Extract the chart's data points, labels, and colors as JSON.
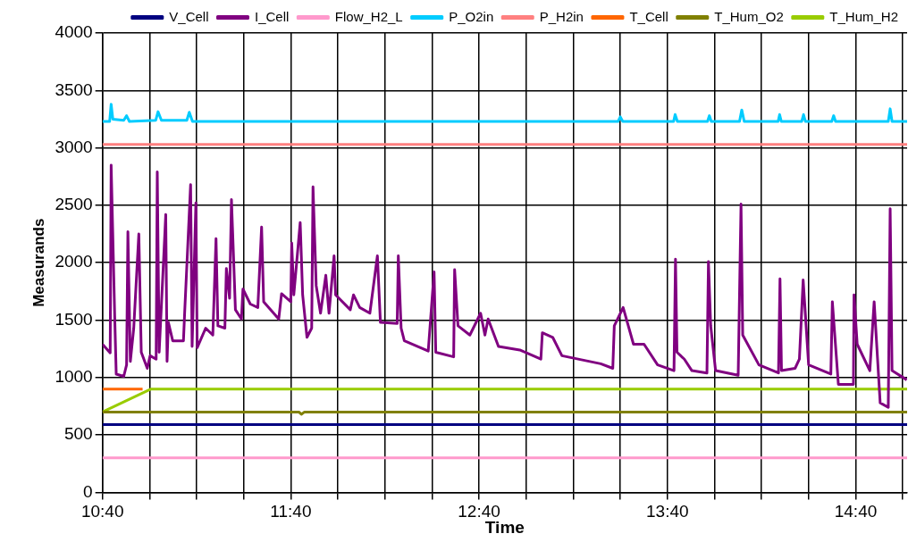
{
  "chart_data": {
    "type": "line",
    "xlabel": "Time",
    "ylabel": "Measurands",
    "legend": "top",
    "grid": true,
    "marker": "none",
    "line_style": "solid",
    "xlim": [
      10.667,
      14.94
    ],
    "xticks": [
      {
        "value": 10.667,
        "label": "10:40"
      },
      {
        "value": 10.917,
        "label": null
      },
      {
        "value": 11.167,
        "label": null
      },
      {
        "value": 11.417,
        "label": null
      },
      {
        "value": 11.667,
        "label": "11:40"
      },
      {
        "value": 11.917,
        "label": null
      },
      {
        "value": 12.167,
        "label": null
      },
      {
        "value": 12.417,
        "label": null
      },
      {
        "value": 12.667,
        "label": "12:40"
      },
      {
        "value": 12.917,
        "label": null
      },
      {
        "value": 13.167,
        "label": null
      },
      {
        "value": 13.417,
        "label": null
      },
      {
        "value": 13.667,
        "label": "13:40"
      },
      {
        "value": 13.917,
        "label": null
      },
      {
        "value": 14.167,
        "label": null
      },
      {
        "value": 14.417,
        "label": null
      },
      {
        "value": 14.667,
        "label": "14:40"
      },
      {
        "value": 14.917,
        "label": null
      }
    ],
    "ylim": [
      0,
      4000
    ],
    "yticks": [
      0,
      500,
      1000,
      1500,
      2000,
      2500,
      3000,
      3500,
      4000
    ],
    "series": [
      {
        "name": "V_Cell",
        "color": "#000080",
        "x": [
          10.667,
          14.94
        ],
        "values": [
          590,
          590
        ]
      },
      {
        "name": "I_Cell",
        "color": "#800080",
        "x": [
          10.667,
          10.708,
          10.713,
          10.732,
          10.74,
          10.78,
          10.795,
          10.802,
          10.815,
          10.833,
          10.86,
          10.873,
          10.905,
          10.92,
          10.952,
          10.958,
          10.968,
          11.003,
          11.01,
          11.017,
          11.04,
          11.097,
          11.103,
          11.135,
          11.143,
          11.163,
          11.17,
          11.215,
          11.253,
          11.27,
          11.28,
          11.317,
          11.325,
          11.342,
          11.352,
          11.373,
          11.405,
          11.413,
          11.452,
          11.492,
          11.512,
          11.523,
          11.603,
          11.618,
          11.667,
          11.672,
          11.683,
          11.717,
          11.73,
          11.753,
          11.778,
          11.785,
          11.802,
          11.825,
          11.853,
          11.87,
          11.897,
          11.905,
          11.983,
          12.0,
          12.033,
          12.087,
          12.127,
          12.143,
          12.232,
          12.238,
          12.253,
          12.27,
          12.397,
          12.428,
          12.437,
          12.532,
          12.537,
          12.555,
          12.618,
          12.675,
          12.698,
          12.715,
          12.77,
          12.883,
          12.995,
          13.003,
          13.058,
          13.107,
          13.313,
          13.377,
          13.385,
          13.432,
          13.487,
          13.543,
          13.615,
          13.702,
          13.71,
          13.718,
          13.757,
          13.797,
          13.877,
          13.885,
          13.897,
          13.923,
          14.043,
          14.058,
          14.067,
          14.153,
          14.257,
          14.265,
          14.273,
          14.345,
          14.368,
          14.388,
          14.417,
          14.535,
          14.543,
          14.575,
          14.655,
          14.658,
          14.675,
          14.742,
          14.765,
          14.797,
          14.84,
          14.85,
          14.86,
          14.938
        ],
        "values": [
          1290,
          1215,
          2850,
          1530,
          1030,
          1010,
          1110,
          2270,
          1140,
          1430,
          2250,
          1220,
          1080,
          1190,
          1160,
          2790,
          1220,
          2420,
          1140,
          1480,
          1320,
          1320,
          1550,
          2680,
          1270,
          2520,
          1260,
          1430,
          1370,
          2210,
          1450,
          1430,
          1950,
          1690,
          2550,
          1590,
          1510,
          1770,
          1640,
          1610,
          2310,
          1660,
          1510,
          1730,
          1660,
          2170,
          1720,
          2350,
          1720,
          1350,
          1430,
          2660,
          1800,
          1560,
          1890,
          1560,
          2060,
          1720,
          1590,
          1720,
          1610,
          1560,
          2060,
          1480,
          1470,
          2060,
          1430,
          1320,
          1230,
          1920,
          1220,
          1180,
          1940,
          1450,
          1370,
          1560,
          1370,
          1510,
          1270,
          1240,
          1160,
          1390,
          1350,
          1190,
          1120,
          1080,
          1450,
          1610,
          1290,
          1290,
          1110,
          1060,
          2030,
          1220,
          1160,
          1060,
          1040,
          2010,
          1450,
          1060,
          1020,
          2510,
          1370,
          1110,
          1040,
          1860,
          1060,
          1080,
          1160,
          1850,
          1110,
          1030,
          1660,
          940,
          940,
          1720,
          1290,
          1060,
          1660,
          780,
          740,
          2470,
          1060,
          980
        ]
      },
      {
        "name": "Flow_H2_L",
        "color": "#ff99cc",
        "x": [
          10.667,
          14.94
        ],
        "values": [
          300,
          300
        ]
      },
      {
        "name": "P_O2in",
        "color": "#00ccff",
        "x": [
          10.667,
          10.705,
          10.713,
          10.722,
          10.78,
          10.795,
          10.81,
          10.95,
          10.962,
          10.98,
          11.115,
          11.128,
          11.145,
          13.405,
          13.417,
          13.43,
          13.7,
          13.708,
          13.72,
          13.88,
          13.89,
          13.9,
          14.05,
          14.062,
          14.075,
          14.255,
          14.263,
          14.272,
          14.38,
          14.39,
          14.4,
          14.54,
          14.55,
          14.56,
          14.84,
          14.85,
          14.86,
          14.94
        ],
        "values": [
          3230,
          3230,
          3380,
          3250,
          3240,
          3280,
          3230,
          3240,
          3315,
          3240,
          3240,
          3310,
          3230,
          3230,
          3270,
          3230,
          3230,
          3290,
          3230,
          3230,
          3280,
          3230,
          3230,
          3330,
          3230,
          3230,
          3290,
          3230,
          3230,
          3290,
          3230,
          3230,
          3280,
          3230,
          3230,
          3340,
          3230,
          3230
        ]
      },
      {
        "name": "P_H2in",
        "color": "#ff8080",
        "x": [
          10.667,
          14.94
        ],
        "values": [
          3030,
          3030
        ]
      },
      {
        "name": "T_Cell",
        "color": "#ff6600",
        "x": [
          10.667,
          10.88
        ],
        "values": [
          900,
          900
        ]
      },
      {
        "name": "T_Hum_O2",
        "color": "#808000",
        "x": [
          10.667,
          11.71,
          11.723,
          11.74,
          14.94
        ],
        "values": [
          700,
          700,
          680,
          700,
          700
        ]
      },
      {
        "name": "T_Hum_H2",
        "color": "#99cc00",
        "x": [
          10.667,
          10.925,
          14.94
        ],
        "values": [
          700,
          900,
          900
        ]
      }
    ]
  }
}
